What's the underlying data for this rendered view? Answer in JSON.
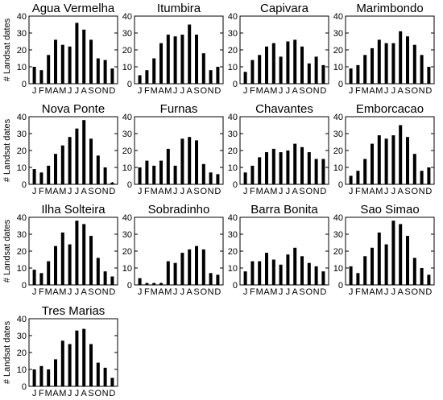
{
  "chart_data": [
    {
      "type": "bar",
      "title": "Agua Vermelha",
      "ylabel": "# Landsat dates",
      "ylim": [
        0,
        40
      ],
      "yticks": [
        0,
        10,
        20,
        30,
        40
      ],
      "categories": [
        "J",
        "F",
        "M",
        "A",
        "M",
        "J",
        "J",
        "A",
        "S",
        "O",
        "N",
        "D"
      ],
      "values": [
        10,
        8,
        17,
        26,
        23,
        22,
        36,
        32,
        26,
        15,
        14,
        9
      ]
    },
    {
      "type": "bar",
      "title": "Itumbira",
      "ylabel": "",
      "ylim": [
        0,
        40
      ],
      "yticks": [
        0,
        10,
        20,
        30,
        40
      ],
      "categories": [
        "J",
        "F",
        "M",
        "A",
        "M",
        "J",
        "J",
        "A",
        "S",
        "O",
        "N",
        "D"
      ],
      "values": [
        5,
        8,
        15,
        24,
        29,
        28,
        29,
        35,
        29,
        18,
        8,
        10
      ]
    },
    {
      "type": "bar",
      "title": "Capivara",
      "ylabel": "",
      "ylim": [
        0,
        40
      ],
      "yticks": [
        0,
        10,
        20,
        30,
        40
      ],
      "categories": [
        "J",
        "F",
        "M",
        "A",
        "M",
        "J",
        "J",
        "A",
        "S",
        "O",
        "N",
        "D"
      ],
      "values": [
        7,
        14,
        17,
        22,
        24,
        16,
        25,
        26,
        22,
        12,
        16,
        11
      ]
    },
    {
      "type": "bar",
      "title": "Marimbondo",
      "ylabel": "",
      "ylim": [
        0,
        40
      ],
      "yticks": [
        0,
        10,
        20,
        30,
        40
      ],
      "categories": [
        "J",
        "F",
        "M",
        "A",
        "M",
        "J",
        "J",
        "A",
        "S",
        "O",
        "N",
        "D"
      ],
      "values": [
        9,
        11,
        17,
        21,
        26,
        24,
        24,
        31,
        28,
        23,
        17,
        10
      ]
    },
    {
      "type": "bar",
      "title": "Nova Ponte",
      "ylabel": "# Landsat dates",
      "ylim": [
        0,
        40
      ],
      "yticks": [
        0,
        10,
        20,
        30,
        40
      ],
      "categories": [
        "J",
        "F",
        "M",
        "A",
        "M",
        "J",
        "J",
        "A",
        "S",
        "O",
        "N",
        "D"
      ],
      "values": [
        9,
        7,
        11,
        18,
        23,
        28,
        33,
        38,
        27,
        17,
        10,
        1
      ]
    },
    {
      "type": "bar",
      "title": "Furnas",
      "ylabel": "",
      "ylim": [
        0,
        40
      ],
      "yticks": [
        0,
        10,
        20,
        30,
        40
      ],
      "categories": [
        "J",
        "F",
        "M",
        "A",
        "M",
        "J",
        "J",
        "A",
        "S",
        "O",
        "N",
        "D"
      ],
      "values": [
        10,
        14,
        11,
        14,
        21,
        11,
        27,
        28,
        26,
        12,
        7,
        6
      ]
    },
    {
      "type": "bar",
      "title": "Chavantes",
      "ylabel": "",
      "ylim": [
        0,
        40
      ],
      "yticks": [
        0,
        10,
        20,
        30,
        40
      ],
      "categories": [
        "J",
        "F",
        "M",
        "A",
        "M",
        "J",
        "J",
        "A",
        "S",
        "O",
        "N",
        "D"
      ],
      "values": [
        7,
        11,
        16,
        19,
        21,
        19,
        20,
        24,
        22,
        19,
        15,
        15
      ]
    },
    {
      "type": "bar",
      "title": "Emborcacao",
      "ylabel": "",
      "ylim": [
        0,
        40
      ],
      "yticks": [
        0,
        10,
        20,
        30,
        40
      ],
      "categories": [
        "J",
        "F",
        "M",
        "A",
        "M",
        "J",
        "J",
        "A",
        "S",
        "O",
        "N",
        "D"
      ],
      "values": [
        5,
        8,
        15,
        24,
        29,
        27,
        29,
        35,
        28,
        18,
        8,
        10
      ]
    },
    {
      "type": "bar",
      "title": "Ilha Solteira",
      "ylabel": "# Landsat dates",
      "ylim": [
        0,
        40
      ],
      "yticks": [
        0,
        10,
        20,
        30,
        40
      ],
      "categories": [
        "J",
        "F",
        "M",
        "A",
        "M",
        "J",
        "J",
        "A",
        "S",
        "O",
        "N",
        "D"
      ],
      "values": [
        9,
        7,
        14,
        23,
        31,
        24,
        38,
        36,
        29,
        16,
        8,
        5
      ]
    },
    {
      "type": "bar",
      "title": "Sobradinho",
      "ylabel": "",
      "ylim": [
        0,
        40
      ],
      "yticks": [
        0,
        10,
        20,
        30,
        40
      ],
      "categories": [
        "J",
        "F",
        "M",
        "A",
        "M",
        "J",
        "J",
        "A",
        "S",
        "O",
        "N",
        "D"
      ],
      "values": [
        4,
        1,
        1,
        1,
        14,
        13,
        19,
        21,
        23,
        21,
        7,
        6
      ]
    },
    {
      "type": "bar",
      "title": "Barra Bonita",
      "ylabel": "",
      "ylim": [
        0,
        40
      ],
      "yticks": [
        0,
        10,
        20,
        30,
        40
      ],
      "categories": [
        "J",
        "F",
        "M",
        "A",
        "M",
        "J",
        "J",
        "A",
        "S",
        "O",
        "N",
        "D"
      ],
      "values": [
        8,
        14,
        14,
        19,
        15,
        12,
        18,
        22,
        17,
        13,
        11,
        8
      ]
    },
    {
      "type": "bar",
      "title": "Sao Simao",
      "ylabel": "",
      "ylim": [
        0,
        40
      ],
      "yticks": [
        0,
        10,
        20,
        30,
        40
      ],
      "categories": [
        "J",
        "F",
        "M",
        "A",
        "M",
        "J",
        "J",
        "A",
        "S",
        "O",
        "N",
        "D"
      ],
      "values": [
        11,
        7,
        17,
        22,
        31,
        24,
        38,
        36,
        29,
        16,
        10,
        6
      ]
    },
    {
      "type": "bar",
      "title": "Tres Marias",
      "ylabel": "# Landsat dates",
      "ylim": [
        0,
        40
      ],
      "yticks": [
        0,
        10,
        20,
        30,
        40
      ],
      "categories": [
        "J",
        "F",
        "M",
        "A",
        "M",
        "J",
        "J",
        "A",
        "S",
        "O",
        "N",
        "D"
      ],
      "values": [
        10,
        12,
        10,
        16,
        27,
        25,
        33,
        34,
        25,
        14,
        11,
        5
      ]
    }
  ],
  "colors": {
    "bar": "#000000",
    "axis": "#000000",
    "background": "#ffffff"
  }
}
